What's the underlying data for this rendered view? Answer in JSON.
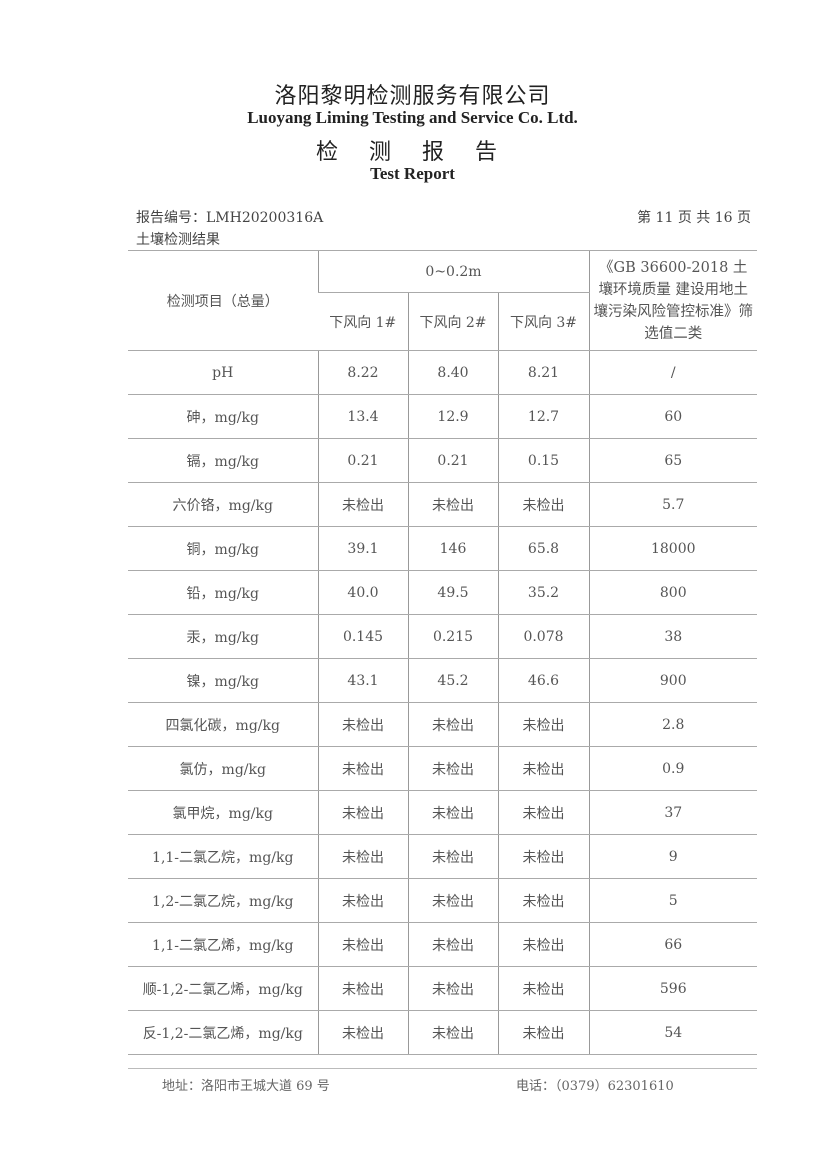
{
  "header": {
    "company_cn": "洛阳黎明检测服务有限公司",
    "company_en": "Luoyang Liming Testing and Service Co. Ltd.",
    "title_cn": "检 测 报 告",
    "title_en": "Test Report"
  },
  "meta": {
    "report_no": "报告编号：LMH20200316A",
    "page": "第 11 页 共 16 页",
    "section": "土壤检测结果"
  },
  "table": {
    "col_item": "检测项目（总量）",
    "depth": "0~0.2m",
    "samples": [
      "下风向 1#",
      "下风向 2#",
      "下风向 3#"
    ],
    "standard": "《GB 36600-2018 土壤环境质量 建设用地土壤污染风险管控标准》筛选值二类",
    "rows": [
      {
        "item": "pH",
        "v1": "8.22",
        "v2": "8.40",
        "v3": "8.21",
        "std": "/"
      },
      {
        "item": "砷，mg/kg",
        "v1": "13.4",
        "v2": "12.9",
        "v3": "12.7",
        "std": "60"
      },
      {
        "item": "镉，mg/kg",
        "v1": "0.21",
        "v2": "0.21",
        "v3": "0.15",
        "std": "65"
      },
      {
        "item": "六价铬，mg/kg",
        "v1": "未检出",
        "v2": "未检出",
        "v3": "未检出",
        "std": "5.7"
      },
      {
        "item": "铜，mg/kg",
        "v1": "39.1",
        "v2": "146",
        "v3": "65.8",
        "std": "18000"
      },
      {
        "item": "铅，mg/kg",
        "v1": "40.0",
        "v2": "49.5",
        "v3": "35.2",
        "std": "800"
      },
      {
        "item": "汞，mg/kg",
        "v1": "0.145",
        "v2": "0.215",
        "v3": "0.078",
        "std": "38"
      },
      {
        "item": "镍，mg/kg",
        "v1": "43.1",
        "v2": "45.2",
        "v3": "46.6",
        "std": "900"
      },
      {
        "item": "四氯化碳，mg/kg",
        "v1": "未检出",
        "v2": "未检出",
        "v3": "未检出",
        "std": "2.8"
      },
      {
        "item": "氯仿，mg/kg",
        "v1": "未检出",
        "v2": "未检出",
        "v3": "未检出",
        "std": "0.9"
      },
      {
        "item": "氯甲烷，mg/kg",
        "v1": "未检出",
        "v2": "未检出",
        "v3": "未检出",
        "std": "37"
      },
      {
        "item": "1,1-二氯乙烷，mg/kg",
        "v1": "未检出",
        "v2": "未检出",
        "v3": "未检出",
        "std": "9"
      },
      {
        "item": "1,2-二氯乙烷，mg/kg",
        "v1": "未检出",
        "v2": "未检出",
        "v3": "未检出",
        "std": "5"
      },
      {
        "item": "1,1-二氯乙烯，mg/kg",
        "v1": "未检出",
        "v2": "未检出",
        "v3": "未检出",
        "std": "66"
      },
      {
        "item": "顺-1,2-二氯乙烯，mg/kg",
        "v1": "未检出",
        "v2": "未检出",
        "v3": "未检出",
        "std": "596"
      },
      {
        "item": "反-1,2-二氯乙烯，mg/kg",
        "v1": "未检出",
        "v2": "未检出",
        "v3": "未检出",
        "std": "54"
      }
    ]
  },
  "footer": {
    "address": "地址：洛阳市王城大道 69 号",
    "phone": "电话：（0379）62301610"
  }
}
